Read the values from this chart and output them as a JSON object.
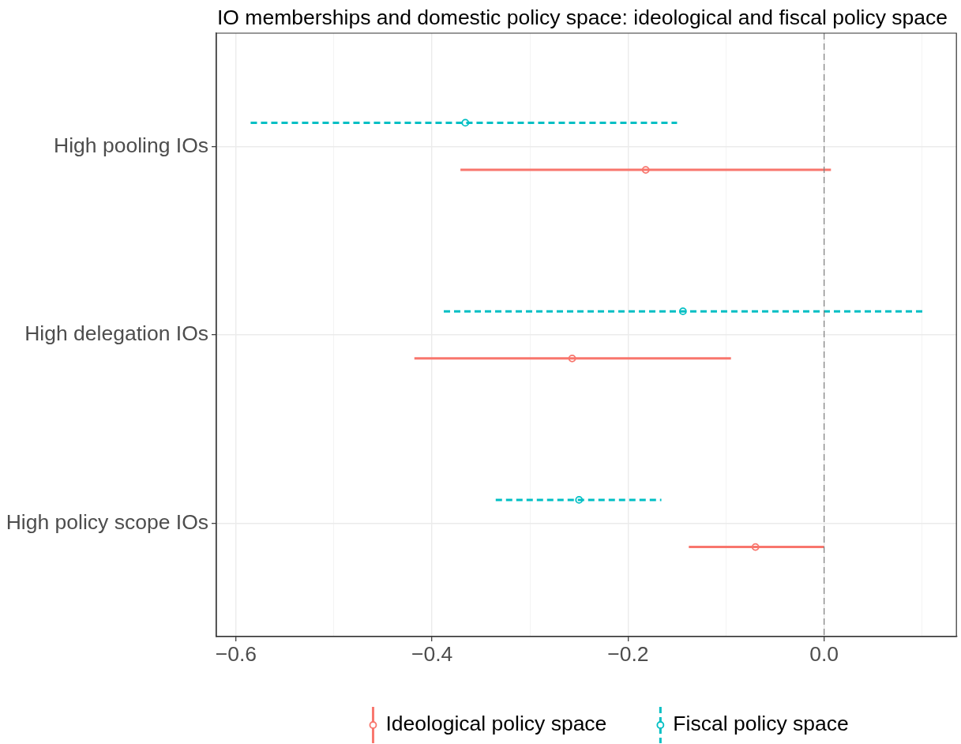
{
  "chart_data": {
    "type": "scatter",
    "title": "IO memberships and domestic policy space: ideological and fiscal policy space",
    "orientation": "horizontal",
    "categories": [
      "High pooling IOs",
      "High delegation IOs",
      "High policy scope IOs"
    ],
    "series": [
      {
        "name": "Ideological policy space",
        "color": "#f8766d",
        "line_style": "solid",
        "values": [
          -0.182,
          -0.257,
          -0.07
        ],
        "errors": [
          [
            -0.371,
            0.007
          ],
          [
            -0.418,
            -0.095
          ],
          [
            -0.138,
            0.0
          ]
        ]
      },
      {
        "name": "Fiscal policy space",
        "color": "#00bfc4",
        "line_style": "dashed",
        "values": [
          -0.366,
          -0.144,
          -0.25
        ],
        "errors": [
          [
            -0.585,
            -0.15
          ],
          [
            -0.388,
            0.101
          ],
          [
            -0.335,
            -0.166
          ]
        ]
      }
    ],
    "xlim": [
      -0.62,
      0.135
    ],
    "xticks": [
      {
        "value": -0.6,
        "label": "−0.6"
      },
      {
        "value": -0.5,
        "label": null
      },
      {
        "value": -0.4,
        "label": "−0.4"
      },
      {
        "value": -0.3,
        "label": null
      },
      {
        "value": -0.2,
        "label": "−0.2"
      },
      {
        "value": -0.1,
        "label": null
      },
      {
        "value": 0,
        "label": "0.0"
      },
      {
        "value": 0.1,
        "label": null
      }
    ],
    "ref_lines": [
      {
        "axis": "x",
        "value": 0,
        "color": "#7f7f7f",
        "line_style": "dashed"
      }
    ],
    "grid": true,
    "legend": "bottom",
    "marker": "circle"
  }
}
